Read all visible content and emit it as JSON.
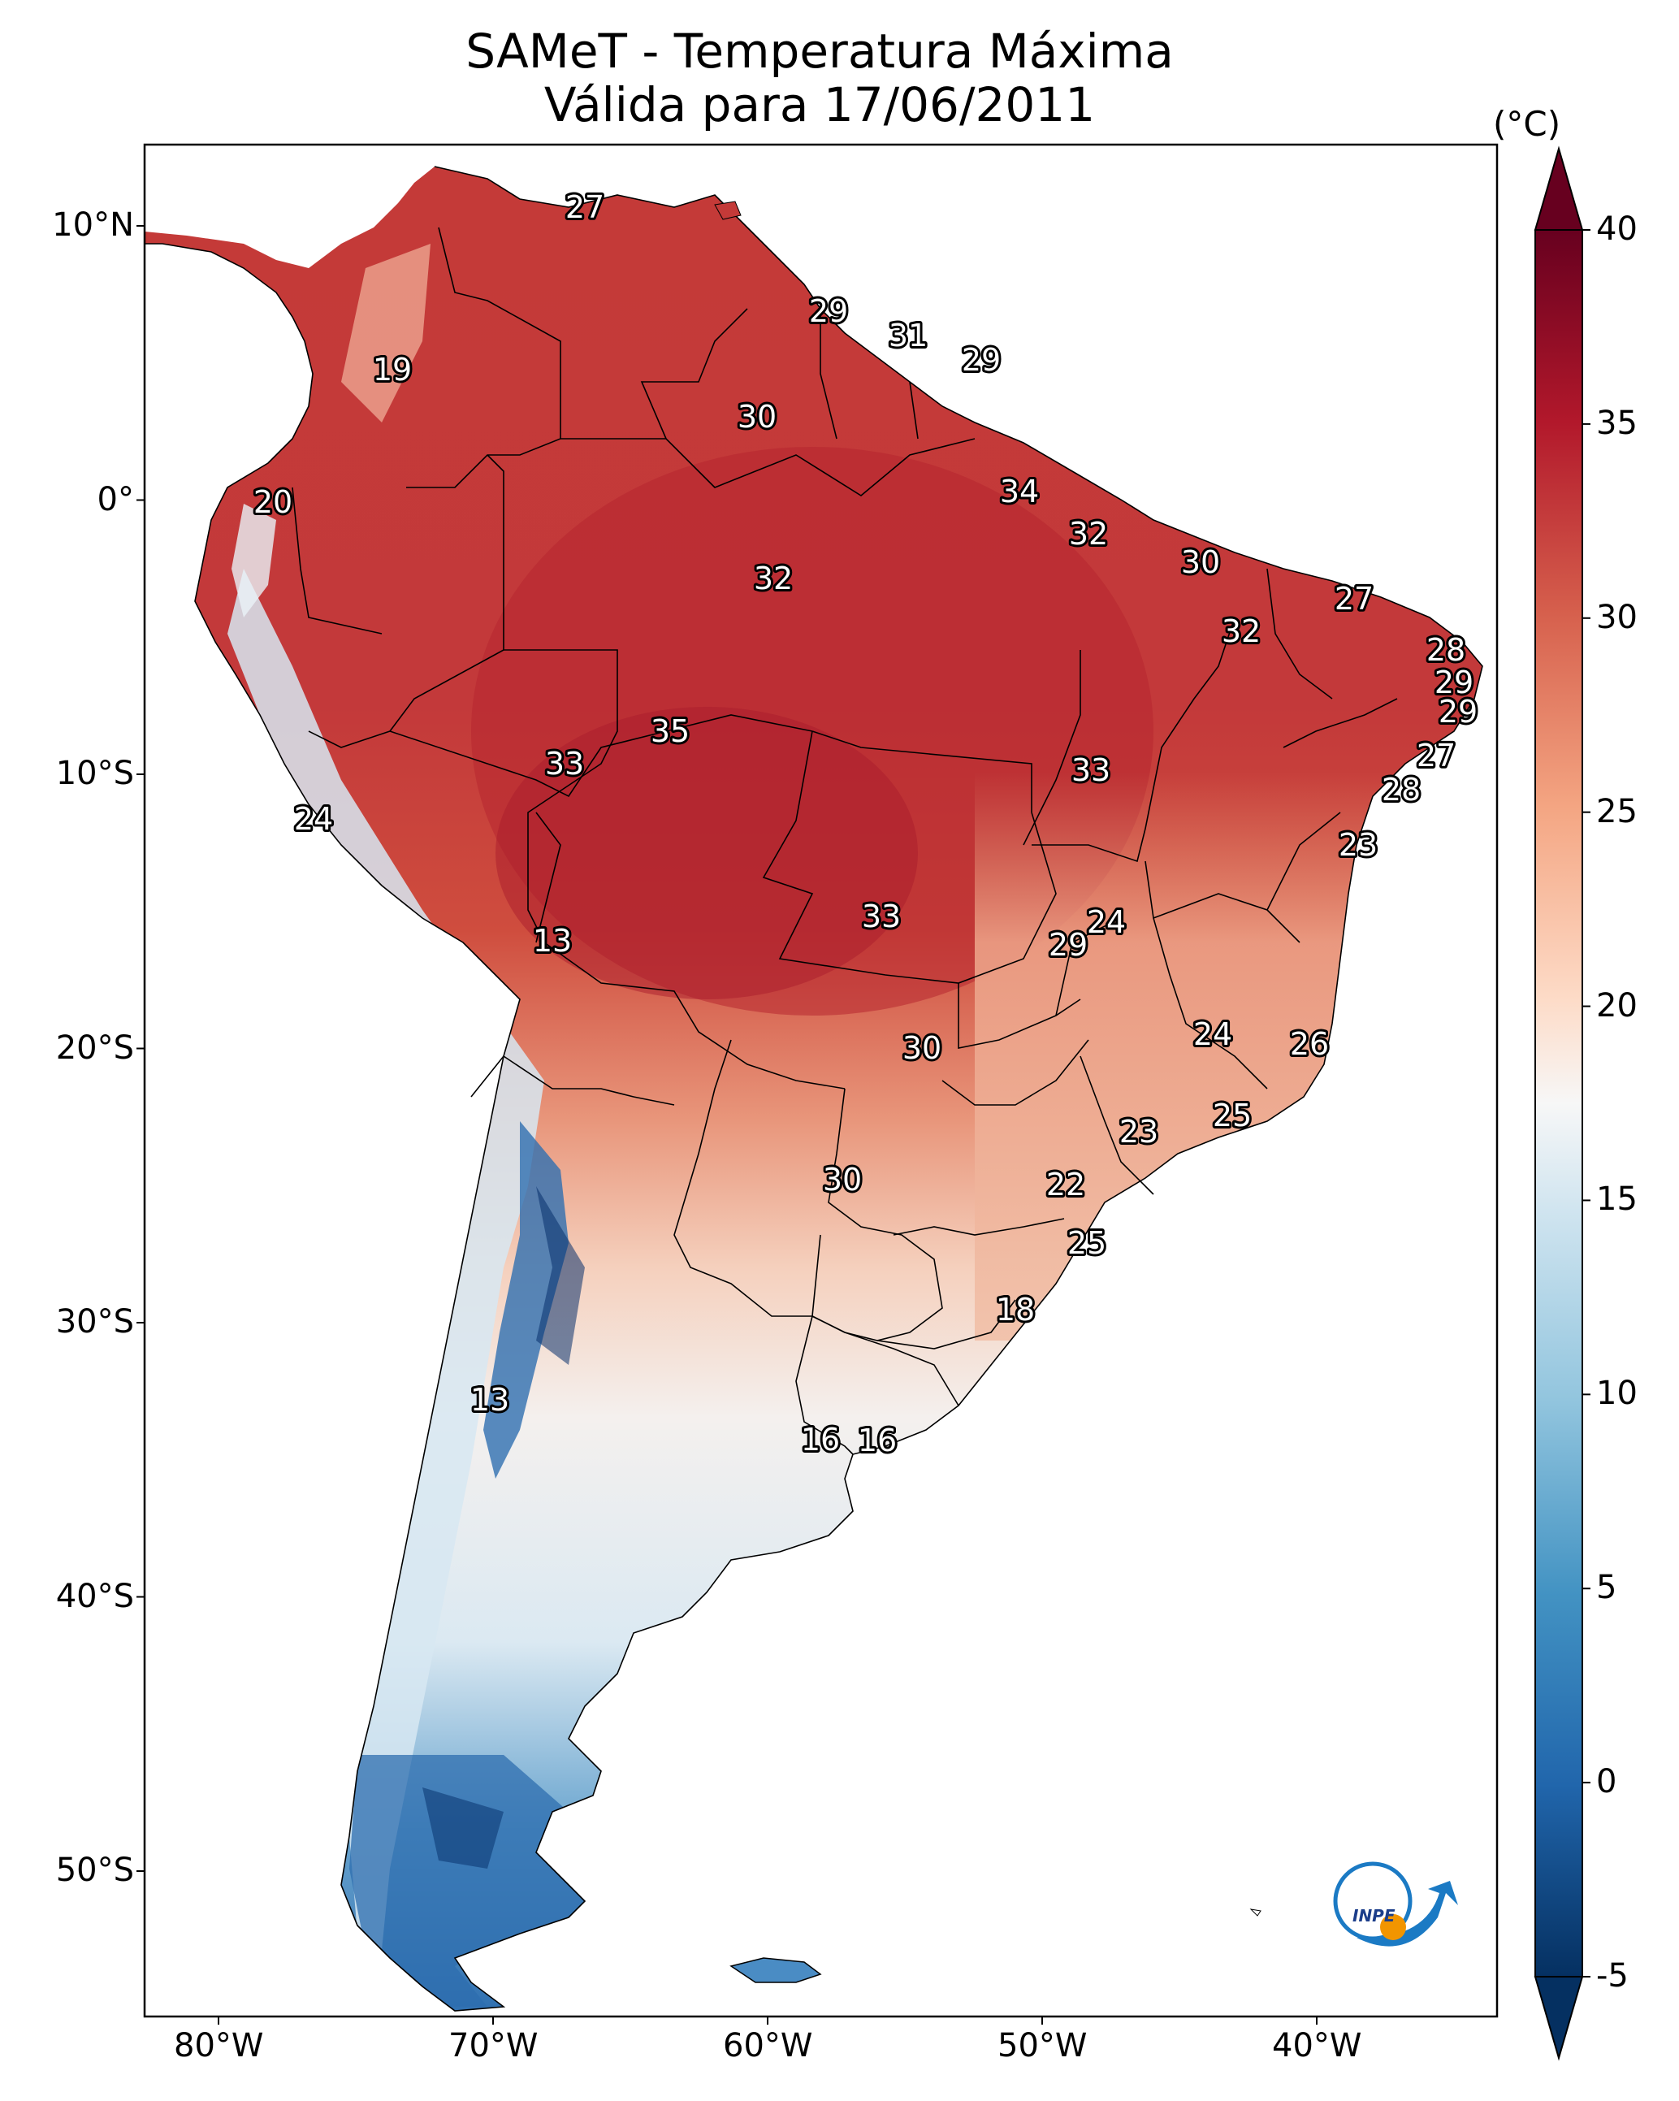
{
  "title": {
    "line1": "SAMeT - Temperatura Máxima",
    "line2": "Válida para 17/06/2011"
  },
  "axes": {
    "lon_labels": [
      "80°W",
      "70°W",
      "60°W",
      "50°W",
      "40°W"
    ],
    "lat_labels": [
      "10°N",
      "0°",
      "10°S",
      "20°S",
      "30°S",
      "40°S",
      "50°S"
    ]
  },
  "colorbar": {
    "unit": "(°C)",
    "ticks": [
      "40",
      "35",
      "30",
      "25",
      "20",
      "15",
      "10",
      "5",
      "0",
      "-5"
    ],
    "range": [
      -5,
      40
    ],
    "extend": "both",
    "colormap": "RdBu_r"
  },
  "station_labels": [
    {
      "id": "s1",
      "text": "27"
    },
    {
      "id": "s2",
      "text": "19"
    },
    {
      "id": "s3",
      "text": "29"
    },
    {
      "id": "s4",
      "text": "31"
    },
    {
      "id": "s5",
      "text": "29"
    },
    {
      "id": "s6",
      "text": "30"
    },
    {
      "id": "s7",
      "text": "20"
    },
    {
      "id": "s8",
      "text": "34"
    },
    {
      "id": "s9",
      "text": "32"
    },
    {
      "id": "s10",
      "text": "30"
    },
    {
      "id": "s11",
      "text": "32"
    },
    {
      "id": "s12",
      "text": "27"
    },
    {
      "id": "s13",
      "text": "32"
    },
    {
      "id": "s14",
      "text": "28"
    },
    {
      "id": "s15",
      "text": "29"
    },
    {
      "id": "s16",
      "text": "29"
    },
    {
      "id": "s17",
      "text": "35"
    },
    {
      "id": "s18",
      "text": "33"
    },
    {
      "id": "s19",
      "text": "33"
    },
    {
      "id": "s20",
      "text": "27"
    },
    {
      "id": "s21",
      "text": "28"
    },
    {
      "id": "s22",
      "text": "24"
    },
    {
      "id": "s23",
      "text": "23"
    },
    {
      "id": "s24",
      "text": "13"
    },
    {
      "id": "s25",
      "text": "33"
    },
    {
      "id": "s26",
      "text": "24"
    },
    {
      "id": "s27",
      "text": "29"
    },
    {
      "id": "s28",
      "text": "30"
    },
    {
      "id": "s29",
      "text": "24"
    },
    {
      "id": "s30",
      "text": "26"
    },
    {
      "id": "s31",
      "text": "25"
    },
    {
      "id": "s32",
      "text": "23"
    },
    {
      "id": "s33",
      "text": "30"
    },
    {
      "id": "s34",
      "text": "22"
    },
    {
      "id": "s35",
      "text": "25"
    },
    {
      "id": "s36",
      "text": "18"
    },
    {
      "id": "s37",
      "text": "13"
    },
    {
      "id": "s38",
      "text": "16"
    },
    {
      "id": "s39",
      "text": "16"
    }
  ],
  "logo": {
    "text": "INPE"
  },
  "colors": {
    "hot": "#67001f",
    "warm": "#d6604d",
    "mild": "#f4a582",
    "neutral": "#f7f7f7",
    "cool": "#92c5de",
    "cold": "#2166ac",
    "coldest": "#053061"
  }
}
